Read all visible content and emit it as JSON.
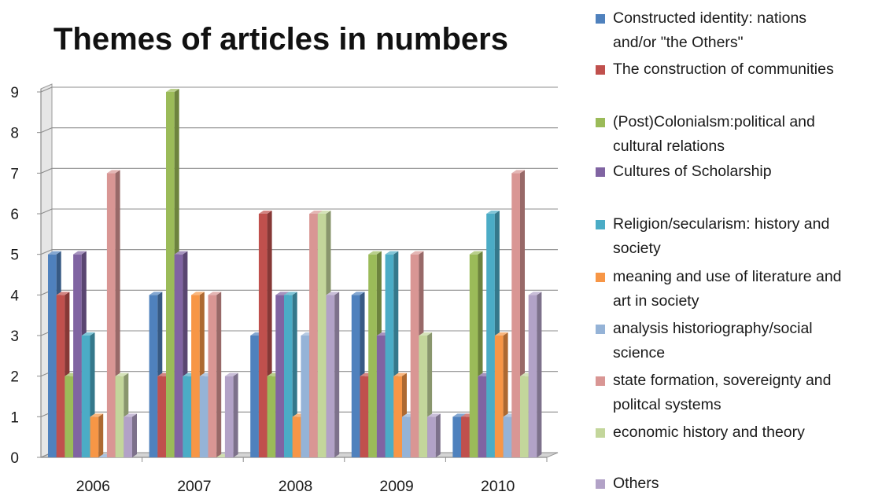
{
  "chart_data": {
    "type": "bar",
    "title": "Themes of articles in numbers",
    "xlabel": "",
    "ylabel": "",
    "ylim": [
      0,
      9
    ],
    "yticks": [
      "0",
      "1",
      "2",
      "3",
      "4",
      "5",
      "6",
      "7",
      "8",
      "9"
    ],
    "grid": true,
    "legend_position": "right",
    "categories": [
      "2006",
      "2007",
      "2008",
      "2009",
      "2010"
    ],
    "series": [
      {
        "name": "Constructed identity: nations and/or \"the Others\"",
        "color": "#4f81bd",
        "values": [
          5,
          4,
          3,
          4,
          1
        ]
      },
      {
        "name": "The construction of communities",
        "color": "#c0504d",
        "values": [
          4,
          2,
          6,
          2,
          1
        ]
      },
      {
        "name": "(Post)Colonialsm:political and cultural relations",
        "color": "#9bbb59",
        "values": [
          2,
          9,
          2,
          5,
          5
        ]
      },
      {
        "name": "Cultures of Scholarship",
        "color": "#8064a2",
        "values": [
          5,
          5,
          4,
          3,
          2
        ]
      },
      {
        "name": "Religion/secularism: history and society",
        "color": "#4bacc6",
        "values": [
          3,
          2,
          4,
          5,
          6
        ]
      },
      {
        "name": "meaning and use of literature and art in society",
        "color": "#f79646",
        "values": [
          1,
          4,
          1,
          2,
          3
        ]
      },
      {
        "name": "analysis historiography/social science",
        "color": "#95b3d7",
        "values": [
          0,
          2,
          3,
          1,
          1
        ]
      },
      {
        "name": "state formation, sovereignty and politcal systems",
        "color": "#d99694",
        "values": [
          7,
          4,
          6,
          5,
          7
        ]
      },
      {
        "name": "economic history and theory",
        "color": "#c3d69b",
        "values": [
          2,
          0,
          6,
          3,
          2
        ]
      },
      {
        "name": "Others",
        "color": "#b2a2c7",
        "values": [
          1,
          2,
          4,
          1,
          4
        ]
      }
    ]
  },
  "legend": {
    "items": [
      {
        "label": "Constructed identity: nations\nand/or \"the Others\"",
        "color": "#4f81bd"
      },
      {
        "label": "The construction of communities",
        "color": "#c0504d"
      },
      {
        "label": "(Post)Colonialsm:political and\ncultural relations",
        "color": "#9bbb59"
      },
      {
        "label": "Cultures of Scholarship",
        "color": "#8064a2"
      },
      {
        "label": "Religion/secularism: history and\nsociety",
        "color": "#4bacc6"
      },
      {
        "label": "meaning and use of literature and\nart in society",
        "color": "#f79646"
      },
      {
        "label": "analysis historiography/social\nscience",
        "color": "#95b3d7"
      },
      {
        "label": "state formation, sovereignty and\npolitcal systems",
        "color": "#d99694"
      },
      {
        "label": "economic history and theory",
        "color": "#c3d69b"
      },
      {
        "label": "Others",
        "color": "#b2a2c7"
      }
    ]
  }
}
